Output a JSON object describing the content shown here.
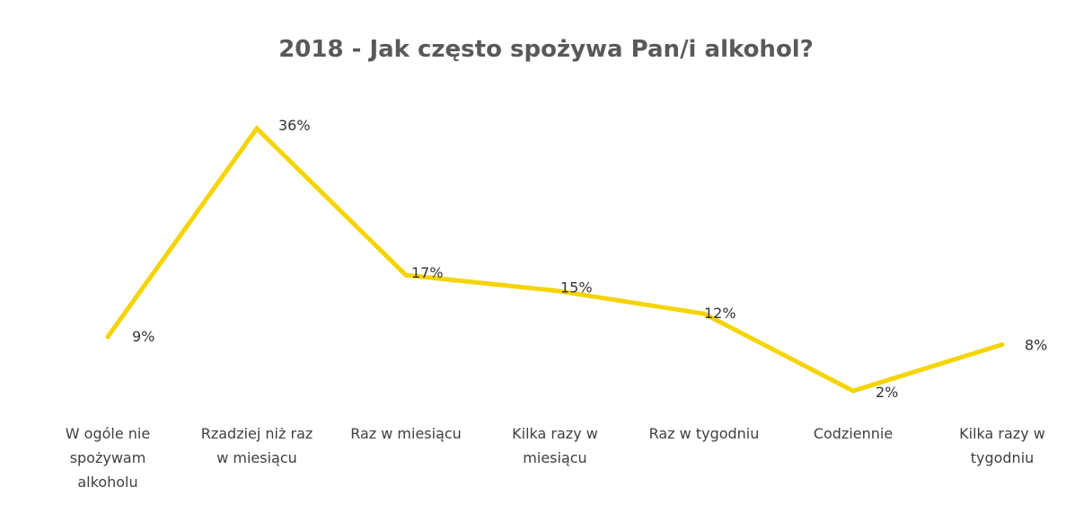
{
  "chart_data": {
    "type": "line",
    "title": "2018 - Jak często spożywa Pan/i alkohol?",
    "xlabel": "",
    "ylabel": "",
    "categories": [
      "W ogóle nie spożywam alkoholu",
      "Rzadziej niż raz w miesiącu",
      "Raz w miesiącu",
      "Kilka razy w miesiącu",
      "Raz w tygodniu",
      "Codziennie",
      "Kilka razy w tygodniu"
    ],
    "category_lines": [
      [
        "W ogóle nie",
        "spożywam",
        "alkoholu"
      ],
      [
        "Rzadziej niż raz",
        "w miesiącu"
      ],
      [
        "Raz w miesiącu"
      ],
      [
        "Kilka razy w",
        "miesiącu"
      ],
      [
        "Raz w tygodniu"
      ],
      [
        "Codziennie"
      ],
      [
        "Kilka razy w",
        "tygodniu"
      ]
    ],
    "values": [
      9,
      36,
      17,
      15,
      12,
      2,
      8
    ],
    "data_labels": [
      "9%",
      "36%",
      "17%",
      "15%",
      "12%",
      "2%",
      "8%"
    ],
    "line_color": "#F5D400",
    "grid": false,
    "legend": "none",
    "ylim": [
      0,
      38
    ]
  }
}
